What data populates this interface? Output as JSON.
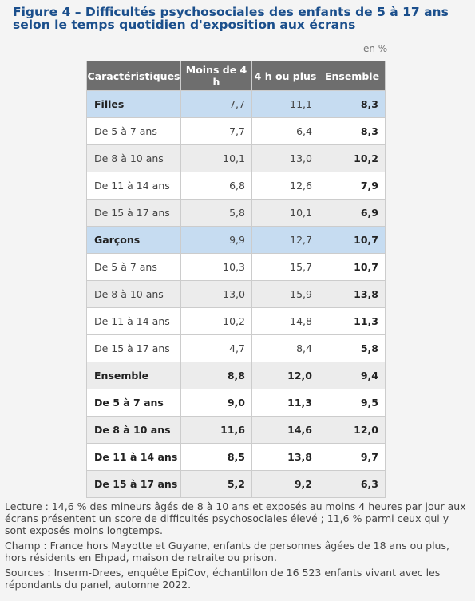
{
  "figure_title": "Figure 4 – Difficultés psychosociales des enfants de 5 à 17 ans selon le temps quotidien d'exposition aux écrans",
  "unit": "en %",
  "table": {
    "headers": [
      "Caractéristiques",
      "Moins de 4 h",
      "4 h ou plus",
      "Ensemble"
    ],
    "rows": [
      {
        "label": "Filles",
        "c1": "7,7",
        "c2": "11,1",
        "c3": "8,3"
      },
      {
        "label": "De 5 à 7 ans",
        "c1": "7,7",
        "c2": "6,4",
        "c3": "8,3"
      },
      {
        "label": "De 8 à 10 ans",
        "c1": "10,1",
        "c2": "13,0",
        "c3": "10,2"
      },
      {
        "label": "De 11 à 14 ans",
        "c1": "6,8",
        "c2": "12,6",
        "c3": "7,9"
      },
      {
        "label": "De 15 à 17 ans",
        "c1": "5,8",
        "c2": "10,1",
        "c3": "6,9"
      },
      {
        "label": "Garçons",
        "c1": "9,9",
        "c2": "12,7",
        "c3": "10,7"
      },
      {
        "label": "De 5 à 7 ans",
        "c1": "10,3",
        "c2": "15,7",
        "c3": "10,7"
      },
      {
        "label": "De 8 à 10 ans",
        "c1": "13,0",
        "c2": "15,9",
        "c3": "13,8"
      },
      {
        "label": "De 11 à 14 ans",
        "c1": "10,2",
        "c2": "14,8",
        "c3": "11,3"
      },
      {
        "label": "De 15 à 17 ans",
        "c1": "4,7",
        "c2": "8,4",
        "c3": "5,8"
      },
      {
        "label": "Ensemble",
        "c1": "8,8",
        "c2": "12,0",
        "c3": "9,4"
      },
      {
        "label": "De 5 à 7 ans",
        "c1": "9,0",
        "c2": "11,3",
        "c3": "9,5"
      },
      {
        "label": "De 8 à 10 ans",
        "c1": "11,6",
        "c2": "14,6",
        "c3": "12,0"
      },
      {
        "label": "De 11 à 14 ans",
        "c1": "8,5",
        "c2": "13,8",
        "c3": "9,7"
      },
      {
        "label": "De 15 à 17 ans",
        "c1": "5,2",
        "c2": "9,2",
        "c3": "6,3"
      }
    ]
  },
  "notes": {
    "lecture": "Lecture : 14,6 % des mineurs âgés de 8 à 10 ans et exposés au moins 4 heures par jour aux écrans présentent un score de difficultés psychosociales élevé ; 11,6 % parmi ceux qui y sont exposés moins longtemps.",
    "champ": "Champ : France hors Mayotte et Guyane, enfants de personnes âgées de 18 ans ou plus, hors résidents en Ehpad, maison de retraite ou prison.",
    "sources": "Sources : Inserm-Drees, enquête EpiCov, échantillon de 16 523 enfants vivant avec les répondants du panel, automne 2022."
  }
}
